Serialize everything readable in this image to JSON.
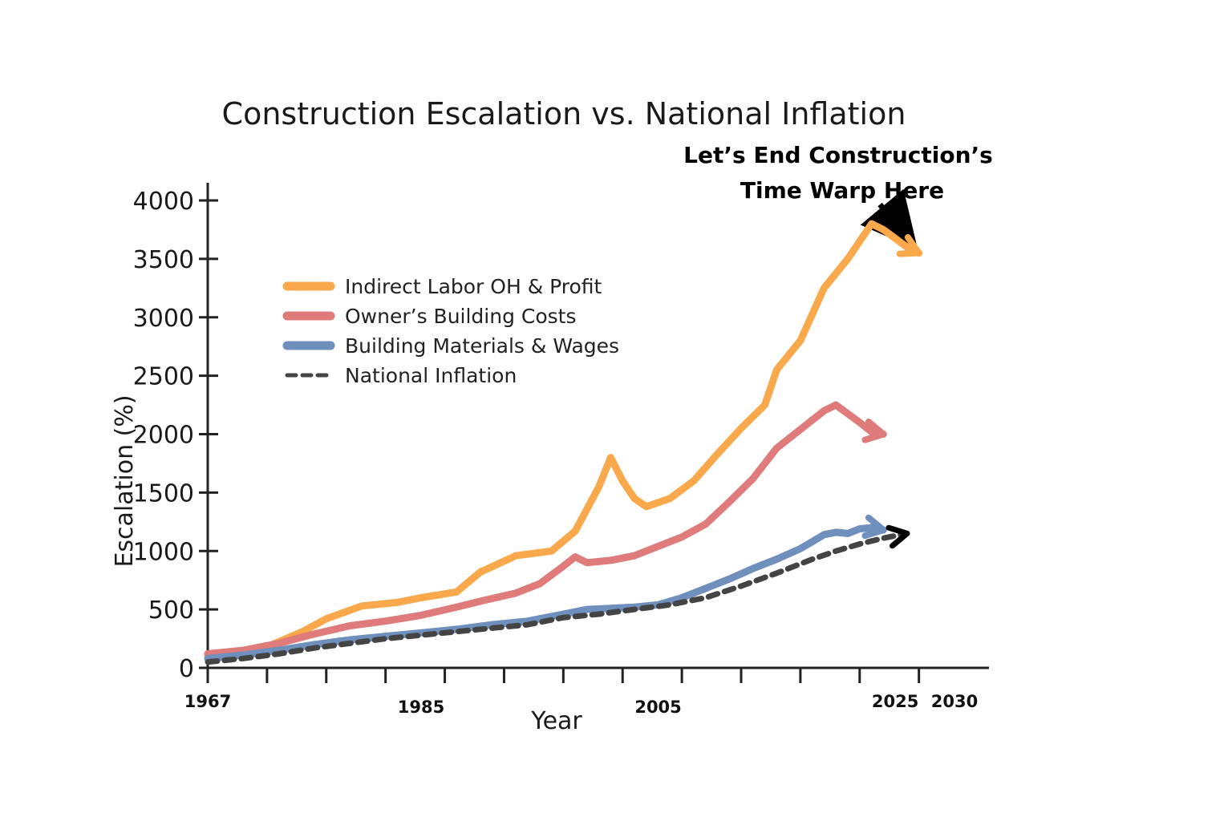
{
  "chart_data": {
    "type": "line",
    "title": "Construction Escalation vs. National Inflation",
    "annotation": "Let’s End Construction’s\nTime Warp Here",
    "xlabel": "Year",
    "ylabel": "Escalation (%)",
    "xlim": [
      1967,
      2030
    ],
    "ylim": [
      0,
      4000
    ],
    "x_ticks": [
      1967,
      1985,
      2005,
      2025,
      2030
    ],
    "y_ticks": [
      0,
      500,
      1000,
      1500,
      2000,
      2500,
      3000,
      3500,
      4000
    ],
    "legend_position": "top-left",
    "grid": false,
    "series": [
      {
        "name": "Indirect Labor OH & Profit",
        "color": "#f9a94b",
        "style": "solid",
        "points": [
          [
            1967,
            100
          ],
          [
            1970,
            120
          ],
          [
            1972,
            180
          ],
          [
            1975,
            310
          ],
          [
            1977,
            420
          ],
          [
            1980,
            530
          ],
          [
            1983,
            560
          ],
          [
            1985,
            600
          ],
          [
            1988,
            650
          ],
          [
            1990,
            820
          ],
          [
            1993,
            960
          ],
          [
            1996,
            1000
          ],
          [
            1998,
            1170
          ],
          [
            2000,
            1550
          ],
          [
            2001,
            1800
          ],
          [
            2002,
            1600
          ],
          [
            2003,
            1450
          ],
          [
            2004,
            1380
          ],
          [
            2006,
            1450
          ],
          [
            2008,
            1600
          ],
          [
            2010,
            1830
          ],
          [
            2012,
            2050
          ],
          [
            2014,
            2250
          ],
          [
            2015,
            2550
          ],
          [
            2017,
            2800
          ],
          [
            2019,
            3250
          ],
          [
            2021,
            3500
          ],
          [
            2023,
            3800
          ],
          [
            2024,
            3750
          ],
          [
            2026,
            3600
          ],
          [
            2027,
            3550
          ]
        ]
      },
      {
        "name": "Owner’s Building Costs",
        "color": "#e07b7b",
        "style": "solid",
        "points": [
          [
            1967,
            120
          ],
          [
            1970,
            150
          ],
          [
            1973,
            210
          ],
          [
            1976,
            290
          ],
          [
            1979,
            360
          ],
          [
            1982,
            400
          ],
          [
            1985,
            450
          ],
          [
            1988,
            520
          ],
          [
            1990,
            570
          ],
          [
            1993,
            640
          ],
          [
            1995,
            720
          ],
          [
            1997,
            870
          ],
          [
            1998,
            950
          ],
          [
            1999,
            900
          ],
          [
            2001,
            920
          ],
          [
            2003,
            960
          ],
          [
            2005,
            1040
          ],
          [
            2007,
            1120
          ],
          [
            2009,
            1230
          ],
          [
            2011,
            1420
          ],
          [
            2013,
            1620
          ],
          [
            2015,
            1880
          ],
          [
            2017,
            2040
          ],
          [
            2019,
            2200
          ],
          [
            2020,
            2250
          ],
          [
            2022,
            2100
          ],
          [
            2023,
            2020
          ],
          [
            2024,
            2000
          ]
        ]
      },
      {
        "name": "Building Materials & Wages",
        "color": "#6f8fbd",
        "style": "solid",
        "points": [
          [
            1967,
            80
          ],
          [
            1970,
            110
          ],
          [
            1973,
            150
          ],
          [
            1976,
            200
          ],
          [
            1979,
            240
          ],
          [
            1982,
            270
          ],
          [
            1985,
            300
          ],
          [
            1988,
            330
          ],
          [
            1991,
            370
          ],
          [
            1994,
            400
          ],
          [
            1997,
            460
          ],
          [
            1999,
            500
          ],
          [
            2001,
            510
          ],
          [
            2003,
            520
          ],
          [
            2005,
            540
          ],
          [
            2007,
            600
          ],
          [
            2009,
            680
          ],
          [
            2011,
            760
          ],
          [
            2013,
            850
          ],
          [
            2015,
            930
          ],
          [
            2017,
            1020
          ],
          [
            2018,
            1080
          ],
          [
            2019,
            1140
          ],
          [
            2020,
            1160
          ],
          [
            2021,
            1150
          ],
          [
            2022,
            1190
          ],
          [
            2023,
            1200
          ],
          [
            2024,
            1180
          ]
        ]
      },
      {
        "name": "National Inflation",
        "color": "#444444",
        "style": "dashed",
        "points": [
          [
            1967,
            50
          ],
          [
            1970,
            80
          ],
          [
            1973,
            120
          ],
          [
            1976,
            170
          ],
          [
            1979,
            210
          ],
          [
            1982,
            250
          ],
          [
            1985,
            280
          ],
          [
            1988,
            310
          ],
          [
            1991,
            340
          ],
          [
            1994,
            370
          ],
          [
            1997,
            430
          ],
          [
            2000,
            460
          ],
          [
            2003,
            500
          ],
          [
            2006,
            540
          ],
          [
            2009,
            600
          ],
          [
            2012,
            700
          ],
          [
            2015,
            810
          ],
          [
            2018,
            930
          ],
          [
            2020,
            1000
          ],
          [
            2022,
            1060
          ],
          [
            2024,
            1110
          ],
          [
            2026,
            1150
          ]
        ]
      }
    ]
  }
}
